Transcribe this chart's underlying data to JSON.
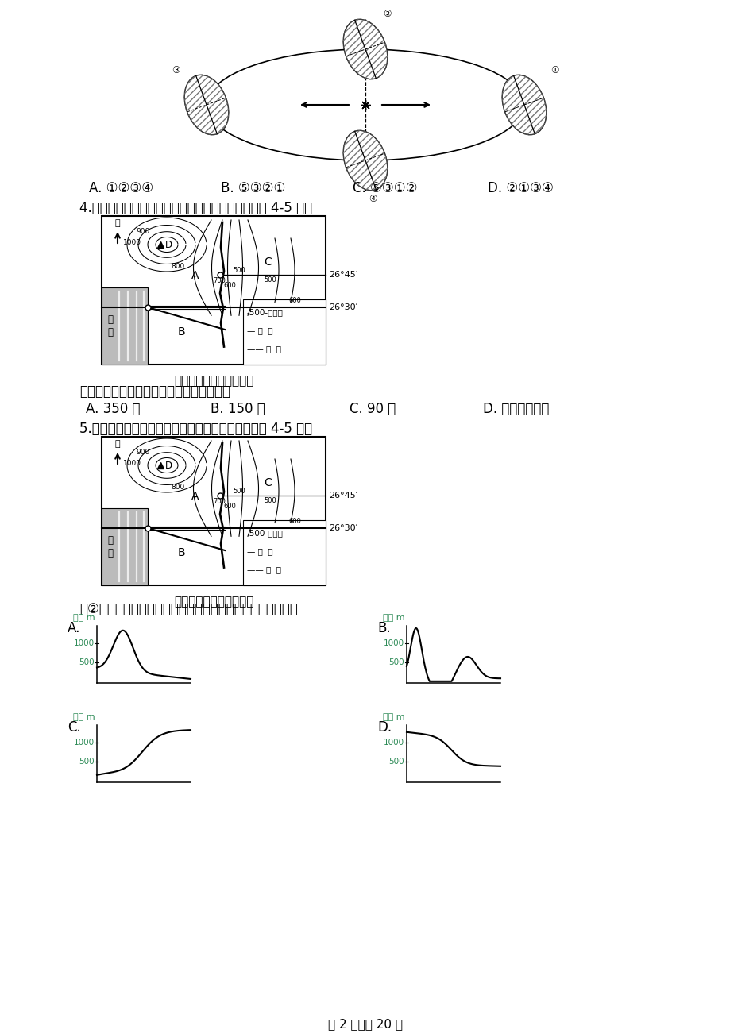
{
  "bg_color": "#ffffff",
  "green_color": "#2e8b57",
  "mc_options": [
    "A. ①②③④",
    "B. ⑤③②①",
    "C. ⑤③①②",
    "D. ②①③④"
  ],
  "q4_intro": "4.　如图所示为神农谷局域等高线示意图，读图完成 4-5 题。",
  "q4_stem": "据图判断，图中瀑布的落差可能是（　　）",
  "q4_a": "A. 350 米",
  "q4_b": "B. 150 米",
  "q4_c": "C. 90 米",
  "q4_d": "D. 以上都有可能",
  "q5_intro": "5.　如图所示为神农谷局域等高线示意图，读图完成 4-5 题。",
  "q5_stem": "氿②纬线自西向东作一张地势剖面图，应该是下面的（　　）",
  "map_caption": "神农谷局域等高线示意图",
  "legend_contour": "-500-等高线",
  "legend_river": "— 河  流",
  "legend_road": "—— 公  路",
  "lat_north": "26°45′",
  "lat_south": "26°30′",
  "hai_ba": "海拘 m",
  "footer": "第 2 页，共 20 页"
}
